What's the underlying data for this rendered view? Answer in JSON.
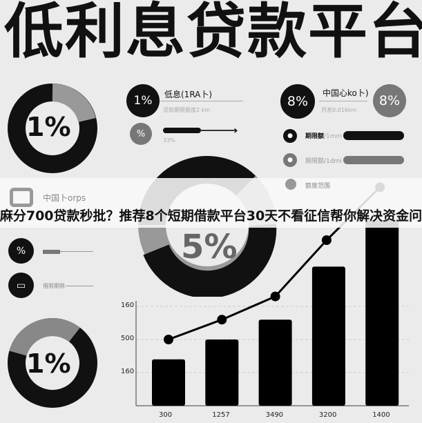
{
  "title": "低利息贷款平台",
  "left_donut_top": {
    "value": "1%"
  },
  "left_donut_bottom": {
    "value": "1%"
  },
  "center_donut": {
    "value": "5%"
  },
  "stat1": {
    "badge": "1%",
    "label": "低息(1RA卜)",
    "sub": "贷款期限额度2 km"
  },
  "stat2": {
    "badge": "%",
    "sub": "33%"
  },
  "stat3": {
    "badge": "8%",
    "label": "中国心ko卜)",
    "sub": "月息0.016km",
    "badge2": "8%"
  },
  "legend": [
    {
      "label": "期限额",
      "sub": "/1mm"
    },
    {
      "label": "期限额",
      "sub": "/1dmi"
    },
    {
      "label": "额度范围"
    }
  ],
  "left_items": [
    {
      "label": "中国卜orps"
    },
    {
      "badge": "%"
    },
    {
      "label": "借限期限"
    }
  ],
  "banner": "芝麻分700贷款秒批？推荐8个短期借款平台30天不看征信帮你解决资金问题",
  "colors": {
    "dark": "#111111",
    "gray": "#777777",
    "light_gray": "#aaaaaa",
    "background": "#ebebeb"
  },
  "chart_data": {
    "type": "bar",
    "categories": [
      "300",
      "1257",
      "3490",
      "3200",
      "1400"
    ],
    "y_tick_labels": [
      "160",
      "500",
      "160"
    ],
    "series": [
      {
        "type": "bar",
        "values": [
          1.4,
          2.0,
          2.6,
          4.2,
          5.6
        ]
      },
      {
        "type": "line",
        "values": [
          2.0,
          2.6,
          3.3,
          5.0,
          6.6
        ]
      }
    ],
    "ylim": [
      0,
      7
    ],
    "grid": true
  }
}
